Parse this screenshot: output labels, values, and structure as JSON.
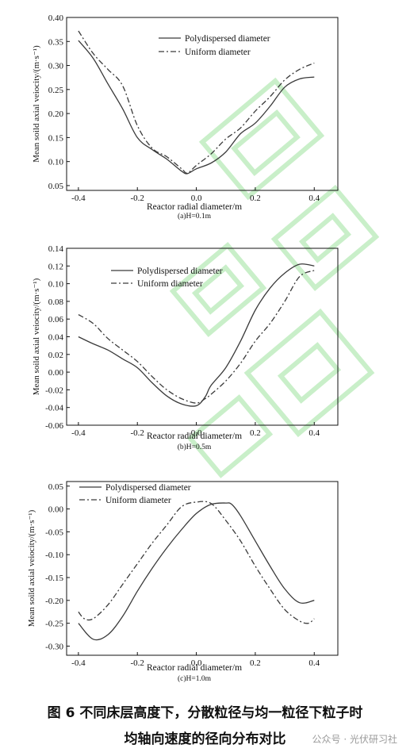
{
  "watermark": "公众号 · 光伏研习社",
  "caption": {
    "line1": "图 6 不同床层高度下，分散粒径与均一粒径下粒子时",
    "line2": "均轴向速度的径向分布对比"
  },
  "colors": {
    "line": "#3a3a3a",
    "axis": "#111111",
    "watermark_stroke": "#c9efc9"
  },
  "chart_data": [
    {
      "type": "line",
      "subtitle": "(a)H=0.1m",
      "xlabel": "Reactor radial diameter/m",
      "ylabel": "Mean soild axial veiocity/(m·s⁻¹)",
      "xlim": [
        -0.44,
        0.48
      ],
      "ylim": [
        0.04,
        0.4
      ],
      "xticks": [
        -0.4,
        -0.2,
        0.0,
        0.2,
        0.4
      ],
      "xtick_labels": [
        "-0.4",
        "-0.2",
        "0.0",
        "0.2",
        "0.4"
      ],
      "yticks": [
        0.05,
        0.1,
        0.15,
        0.2,
        0.25,
        0.3,
        0.35,
        0.4
      ],
      "ytick_labels": [
        "0.05",
        "0.10",
        "0.15",
        "0.20",
        "0.25",
        "0.30",
        "0.35",
        "0.40"
      ],
      "legend": "top-right",
      "series": [
        {
          "name": "Polydispersed  diameter",
          "style": "solid",
          "x": [
            -0.4,
            -0.35,
            -0.3,
            -0.25,
            -0.2,
            -0.15,
            -0.1,
            -0.05,
            -0.03,
            0.0,
            0.05,
            0.1,
            0.15,
            0.2,
            0.25,
            0.3,
            0.35,
            0.4
          ],
          "y": [
            0.352,
            0.315,
            0.262,
            0.21,
            0.15,
            0.125,
            0.105,
            0.08,
            0.075,
            0.085,
            0.097,
            0.12,
            0.158,
            0.18,
            0.215,
            0.255,
            0.272,
            0.276
          ]
        },
        {
          "name": "Uniform  diameter",
          "style": "dashdot",
          "x": [
            -0.4,
            -0.35,
            -0.3,
            -0.25,
            -0.2,
            -0.15,
            -0.1,
            -0.05,
            -0.03,
            0.0,
            0.05,
            0.1,
            0.15,
            0.2,
            0.25,
            0.3,
            0.35,
            0.4
          ],
          "y": [
            0.372,
            0.325,
            0.292,
            0.258,
            0.175,
            0.128,
            0.11,
            0.085,
            0.076,
            0.092,
            0.116,
            0.147,
            0.17,
            0.205,
            0.235,
            0.27,
            0.292,
            0.305
          ]
        }
      ]
    },
    {
      "type": "line",
      "subtitle": "(b)H=0.5m",
      "xlabel": "Reactor radial diameter/m",
      "ylabel": "Mean soild axial veiocity/(m·s⁻¹)",
      "xlim": [
        -0.44,
        0.48
      ],
      "ylim": [
        -0.06,
        0.14
      ],
      "xticks": [
        -0.4,
        -0.2,
        0.0,
        0.2,
        0.4
      ],
      "xtick_labels": [
        "-0.4",
        "-0.2",
        "0.0",
        "0.2",
        "0.4"
      ],
      "yticks": [
        -0.06,
        -0.04,
        -0.02,
        0.0,
        0.02,
        0.04,
        0.06,
        0.08,
        0.1,
        0.12,
        0.14
      ],
      "ytick_labels": [
        "-0.06",
        "-0.04",
        "-0.02",
        "0.00",
        "0.02",
        "0.04",
        "0.06",
        "0.08",
        "0.10",
        "0.12",
        "0.14"
      ],
      "legend": "top-left",
      "series": [
        {
          "name": "Polydispersed  diameter",
          "style": "solid",
          "x": [
            -0.4,
            -0.35,
            -0.3,
            -0.25,
            -0.2,
            -0.15,
            -0.1,
            -0.05,
            0.0,
            0.03,
            0.05,
            0.1,
            0.15,
            0.2,
            0.25,
            0.3,
            0.35,
            0.4
          ],
          "y": [
            0.04,
            0.032,
            0.025,
            0.015,
            0.005,
            -0.012,
            -0.027,
            -0.036,
            -0.038,
            -0.028,
            -0.015,
            0.005,
            0.035,
            0.07,
            0.095,
            0.112,
            0.122,
            0.12
          ]
        },
        {
          "name": "Uniform  diameter",
          "style": "dashdot",
          "x": [
            -0.4,
            -0.35,
            -0.3,
            -0.25,
            -0.2,
            -0.15,
            -0.1,
            -0.05,
            0.0,
            0.03,
            0.05,
            0.1,
            0.15,
            0.2,
            0.25,
            0.3,
            0.35,
            0.4
          ],
          "y": [
            0.065,
            0.055,
            0.038,
            0.025,
            0.012,
            -0.005,
            -0.02,
            -0.03,
            -0.035,
            -0.03,
            -0.025,
            -0.01,
            0.01,
            0.035,
            0.055,
            0.08,
            0.108,
            0.115
          ]
        }
      ]
    },
    {
      "type": "line",
      "subtitle": "(c)H=1.0m",
      "xlabel": "Reactor radial diameter/m",
      "ylabel": "Mean soild axial veiocity/(m·s⁻¹)",
      "xlim": [
        -0.44,
        0.48
      ],
      "ylim": [
        -0.32,
        0.06
      ],
      "xticks": [
        -0.4,
        -0.2,
        0.0,
        0.2,
        0.4
      ],
      "xtick_labels": [
        "-0.4",
        "-0.2",
        "0.0",
        "0.2",
        "0.4"
      ],
      "yticks": [
        -0.3,
        -0.25,
        -0.2,
        -0.15,
        -0.1,
        -0.05,
        0.0,
        0.05
      ],
      "ytick_labels": [
        "-0.30",
        "-0.25",
        "-0.20",
        "-0.15",
        "-0.10",
        "-0.05",
        "0.00",
        "0.05"
      ],
      "legend": "top-left",
      "series": [
        {
          "name": "Polydispersed  diameter",
          "style": "solid",
          "x": [
            -0.4,
            -0.35,
            -0.3,
            -0.25,
            -0.2,
            -0.15,
            -0.1,
            -0.05,
            0.0,
            0.05,
            0.1,
            0.12,
            0.15,
            0.2,
            0.25,
            0.3,
            0.35,
            0.4
          ],
          "y": [
            -0.25,
            -0.285,
            -0.275,
            -0.235,
            -0.18,
            -0.13,
            -0.085,
            -0.045,
            -0.01,
            0.01,
            0.013,
            0.01,
            -0.015,
            -0.07,
            -0.125,
            -0.175,
            -0.205,
            -0.2
          ]
        },
        {
          "name": "Uniform  diameter",
          "style": "dashdot",
          "x": [
            -0.4,
            -0.38,
            -0.35,
            -0.3,
            -0.25,
            -0.2,
            -0.15,
            -0.1,
            -0.05,
            0.0,
            0.05,
            0.1,
            0.15,
            0.2,
            0.25,
            0.3,
            0.35,
            0.38,
            0.4
          ],
          "y": [
            -0.225,
            -0.24,
            -0.24,
            -0.21,
            -0.165,
            -0.12,
            -0.075,
            -0.035,
            0.005,
            0.015,
            0.012,
            -0.025,
            -0.07,
            -0.125,
            -0.175,
            -0.22,
            -0.245,
            -0.25,
            -0.24
          ]
        }
      ]
    }
  ]
}
